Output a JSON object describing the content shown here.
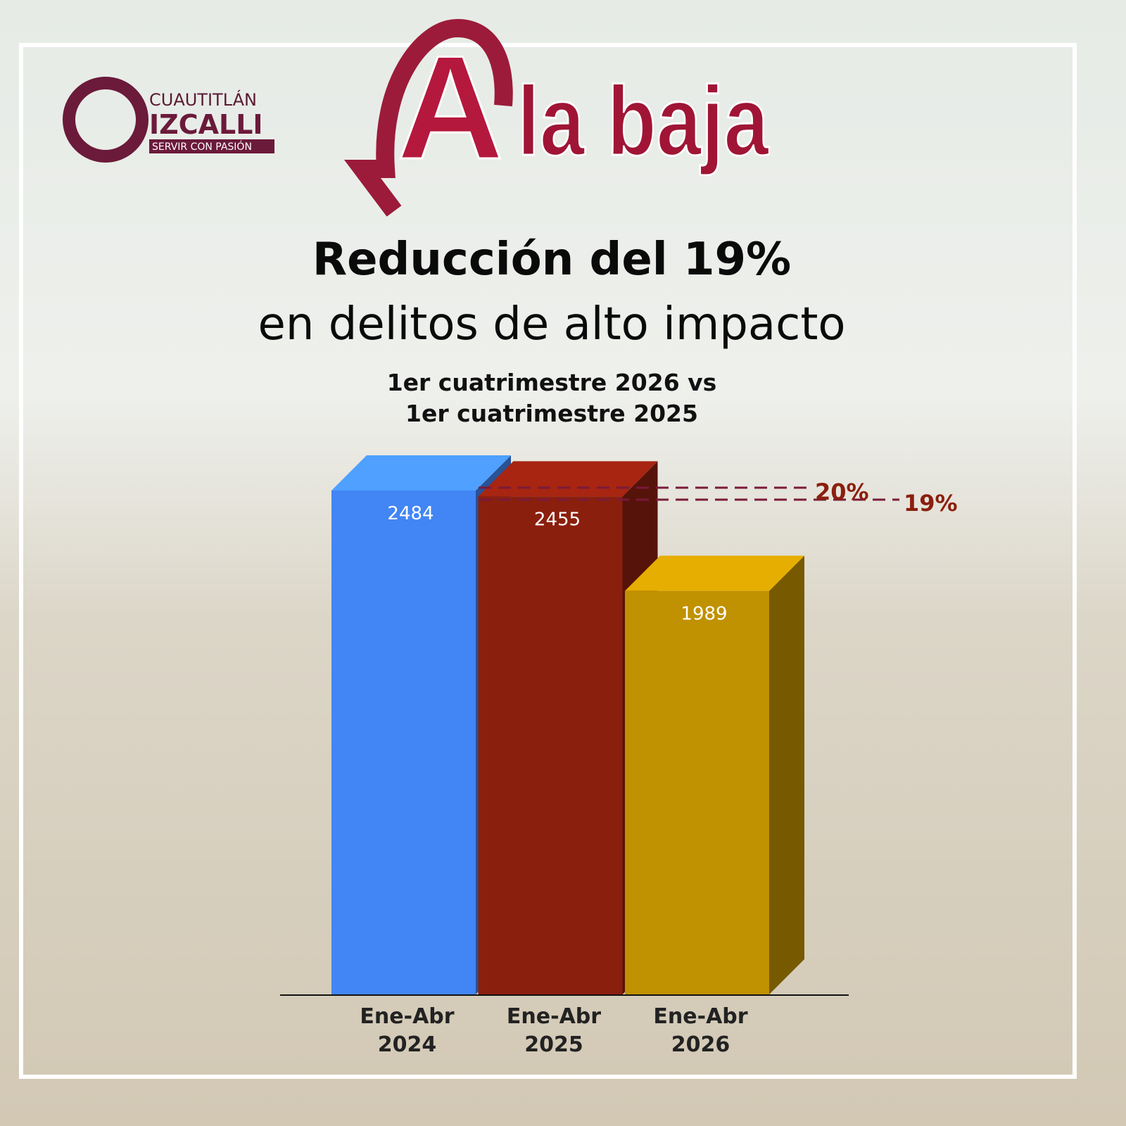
{
  "header": {
    "logo_top": "CUAUTITLÁN",
    "logo_main": "IZCALLI",
    "logo_tagline": "SERVIR CON PASIÓN",
    "letter": "A",
    "banner": "la baja"
  },
  "chart_data": {
    "type": "bar",
    "title": "Reducción del 19%",
    "subtitle": "en delitos de alto impacto",
    "notes": [
      "1er cuatrimestre 2026 vs",
      "1er cuatrimestre 2025"
    ],
    "categories": [
      "Ene-Abr 2024",
      "Ene-Abr 2025",
      "Ene-Abr 2026"
    ],
    "values": [
      2484,
      2455,
      1989
    ],
    "colors": [
      "#4285f4",
      "#8b1f0e",
      "#c09100"
    ],
    "annotations": [
      "20%",
      "19%"
    ]
  }
}
